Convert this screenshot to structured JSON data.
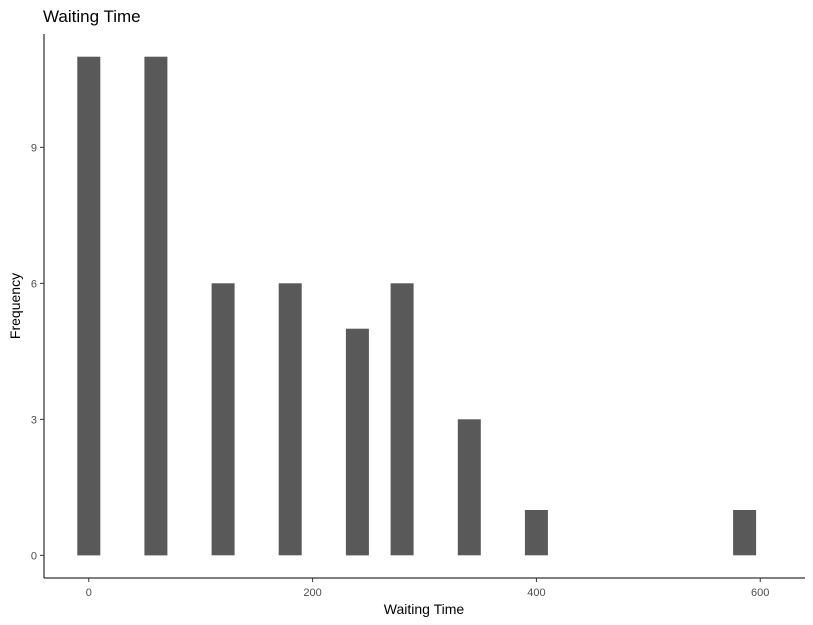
{
  "chart_data": {
    "type": "bar",
    "title": "Waiting Time",
    "xlabel": "Waiting Time",
    "ylabel": "Frequency",
    "x": [
      0,
      60,
      120,
      180,
      240,
      280,
      340,
      400,
      586
    ],
    "values": [
      11,
      11,
      6,
      6,
      5,
      6,
      3,
      1,
      1
    ],
    "xlim": [
      -40,
      640
    ],
    "ylim": [
      -0.5,
      11.5
    ],
    "xticks": [
      0,
      200,
      400,
      600
    ],
    "xtick_labels": [
      "0",
      "200",
      "400",
      "600"
    ],
    "yticks": [
      0,
      3,
      6,
      9
    ],
    "ytick_labels": [
      "0",
      "3",
      "6",
      "9"
    ],
    "bar_color": "#595959",
    "grid": false
  }
}
